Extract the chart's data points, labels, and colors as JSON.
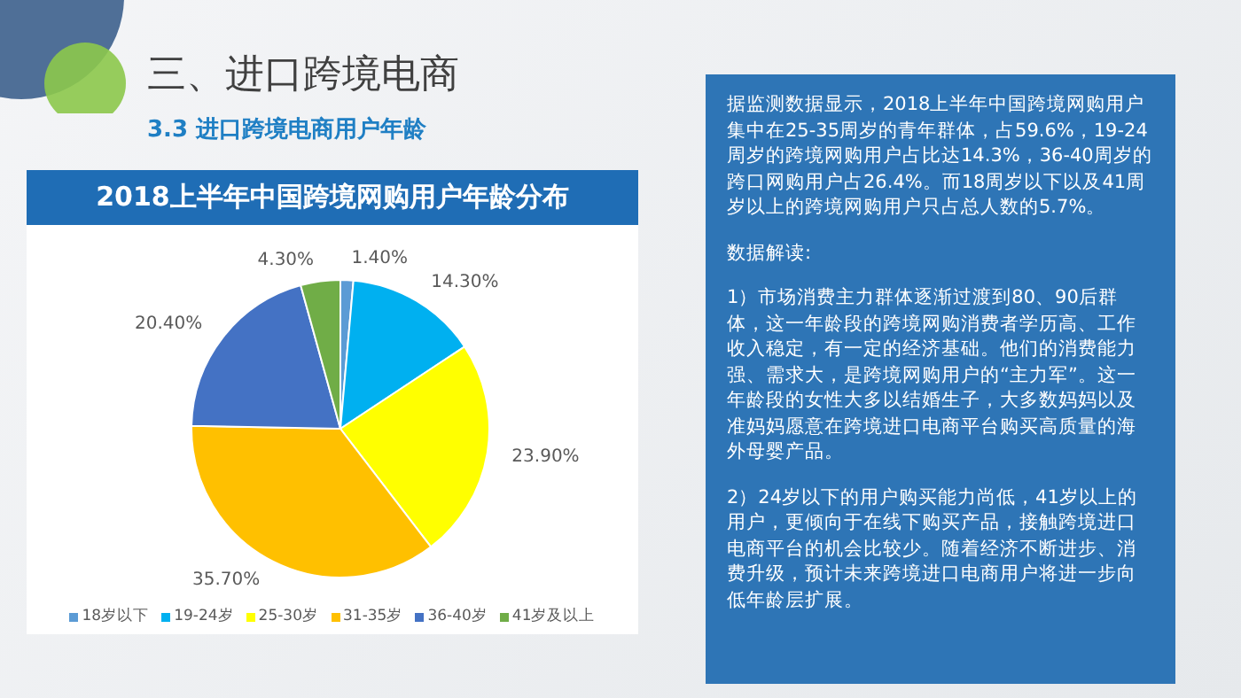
{
  "chart_data": {
    "type": "pie",
    "title": "2018上半年中国跨境网购用户年龄分布",
    "categories": [
      "18岁以下",
      "19-24岁",
      "25-30岁",
      "31-35岁",
      "36-40岁",
      "41岁及以上"
    ],
    "values": [
      1.4,
      14.3,
      23.9,
      35.7,
      20.4,
      4.3
    ],
    "value_labels": [
      "1.40%",
      "14.30%",
      "23.90%",
      "35.70%",
      "20.40%",
      "4.30%"
    ],
    "colors": [
      "#5b9bd5",
      "#00b0f0",
      "#ffff00",
      "#ffc000",
      "#4472c4",
      "#70ad47"
    ],
    "legend": "bottom",
    "annotations": [
      "三、进口跨境电商",
      "3.3 进口跨境电商用户年龄",
      "据监测数据显示，2018上半年中国跨境网购用户集中在25-35周岁的青年群体，占59.6%，19-24周岁的跨境网购用户占比达14.3%，36-40周岁的跨口网购用户占26.4%。而18周岁以下以及41周岁以上的跨境网购用户只占总人数的5.7%。",
      "数据解读:",
      "1）市场消费主力群体逐渐过渡到80、90后群体，这一年龄段的跨境网购消费者学历高、工作收入稳定，有一定的经济基础。他们的消费能力强、需求大，是跨境网购用户的“主力军”。这一年龄段的女性大多以结婚生子，大多数妈妈以及准妈妈愿意在跨境进口电商平台购买高质量的海外母婴产品。",
      "2）24岁以下的用户购买能力尚低，41岁以上的用户，更倾向于在线下购买产品，接触跨境进口电商平台的机会比较少。随着经济不断进步、消费升级，预计未来跨境进口电商用户将进一步向低年龄层扩展。"
    ]
  }
}
